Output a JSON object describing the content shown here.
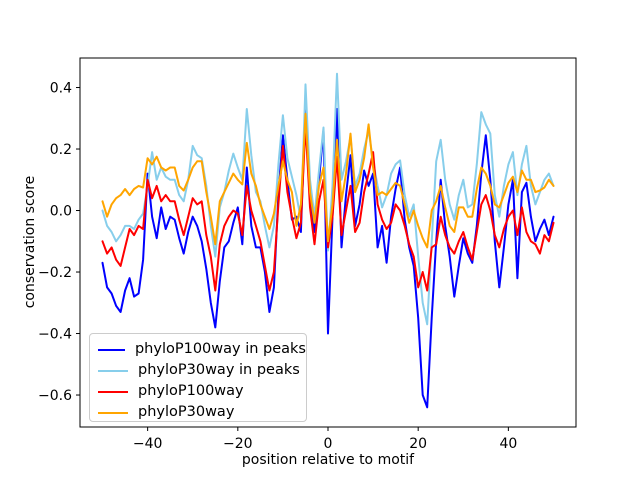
{
  "figure": {
    "background": "#ffffff"
  },
  "chart_data": {
    "type": "line",
    "title": "",
    "xlabel": "position relative to motif",
    "ylabel": "conservation score",
    "xlim": [
      -55,
      55
    ],
    "ylim": [
      -0.704,
      0.496
    ],
    "grid": false,
    "legend_position": "lower left",
    "xticks": {
      "values": [
        -40,
        -20,
        0,
        20,
        40
      ],
      "labels": [
        "−40",
        "−20",
        "0",
        "20",
        "40"
      ]
    },
    "yticks": {
      "values": [
        0.4,
        0.2,
        0.0,
        -0.2,
        -0.4,
        -0.6
      ],
      "labels": [
        "0.4",
        "0.2",
        "0.0",
        "−0.2",
        "−0.4",
        "−0.6"
      ]
    },
    "x": [
      -50,
      -49,
      -48,
      -47,
      -46,
      -45,
      -44,
      -43,
      -42,
      -41,
      -40,
      -39,
      -38,
      -37,
      -36,
      -35,
      -34,
      -33,
      -32,
      -31,
      -30,
      -29,
      -28,
      -27,
      -26,
      -25,
      -24,
      -23,
      -22,
      -21,
      -20,
      -19,
      -18,
      -17,
      -16,
      -15,
      -14,
      -13,
      -12,
      -11,
      -10,
      -9,
      -8,
      -7,
      -6,
      -5,
      -4,
      -3,
      -2,
      -1,
      0,
      1,
      2,
      3,
      4,
      5,
      6,
      7,
      8,
      9,
      10,
      11,
      12,
      13,
      14,
      15,
      16,
      17,
      18,
      19,
      20,
      21,
      22,
      23,
      24,
      25,
      26,
      27,
      28,
      29,
      30,
      31,
      32,
      33,
      34,
      35,
      36,
      37,
      38,
      39,
      40,
      41,
      42,
      43,
      44,
      45,
      46,
      47,
      48,
      49,
      50
    ],
    "series": [
      {
        "id": "phyloP100way-in-peaks",
        "name": "phyloP100way in peaks",
        "color": "#0000ff",
        "values": [
          -0.17,
          -0.25,
          -0.27,
          -0.31,
          -0.33,
          -0.26,
          -0.22,
          -0.28,
          -0.27,
          -0.16,
          0.12,
          -0.02,
          -0.09,
          0.01,
          -0.06,
          -0.02,
          -0.03,
          -0.09,
          -0.14,
          -0.07,
          -0.02,
          -0.05,
          -0.1,
          -0.19,
          -0.3,
          -0.38,
          -0.23,
          -0.12,
          -0.1,
          -0.04,
          0.01,
          -0.11,
          0.14,
          -0.05,
          -0.12,
          -0.12,
          -0.2,
          -0.33,
          -0.25,
          0.05,
          0.245,
          0.1,
          -0.03,
          -0.02,
          -0.07,
          0.34,
          0.05,
          -0.07,
          0.1,
          0.26,
          -0.4,
          -0.02,
          0.33,
          -0.12,
          0.05,
          0.18,
          -0.05,
          0.02,
          0.13,
          0.08,
          0.12,
          -0.12,
          -0.05,
          -0.17,
          -0.02,
          0.07,
          0.14,
          -0.03,
          -0.12,
          -0.18,
          -0.35,
          -0.6,
          -0.64,
          -0.35,
          -0.1,
          0.1,
          -0.05,
          -0.15,
          -0.28,
          -0.18,
          -0.09,
          -0.14,
          -0.17,
          -0.05,
          0.12,
          0.245,
          0.1,
          -0.1,
          -0.25,
          -0.12,
          0.02,
          0.1,
          -0.22,
          0.06,
          0.09,
          -0.02,
          -0.1,
          -0.06,
          -0.03,
          -0.08,
          -0.02
        ]
      },
      {
        "id": "phyloP30way-in-peaks",
        "name": "phyloP30way in peaks",
        "color": "#87ceeb",
        "values": [
          0.0,
          -0.05,
          -0.07,
          -0.1,
          -0.08,
          -0.05,
          -0.05,
          -0.06,
          -0.03,
          -0.01,
          0.08,
          0.19,
          0.1,
          0.14,
          0.11,
          0.1,
          0.1,
          0.05,
          0.03,
          0.1,
          0.21,
          0.18,
          0.17,
          0.08,
          -0.05,
          -0.15,
          0.01,
          0.06,
          0.13,
          0.185,
          0.14,
          0.1,
          0.33,
          0.18,
          0.06,
          0.03,
          -0.05,
          -0.12,
          -0.05,
          0.15,
          0.31,
          0.17,
          0.11,
          0.05,
          -0.03,
          0.41,
          0.1,
          -0.02,
          0.13,
          0.27,
          -0.13,
          0.08,
          0.445,
          0.1,
          0.16,
          0.24,
          0.08,
          0.12,
          0.2,
          0.26,
          0.16,
          0.08,
          0.01,
          0.05,
          0.12,
          0.15,
          0.163,
          0.05,
          -0.02,
          0.02,
          -0.15,
          -0.3,
          -0.37,
          -0.1,
          0.16,
          0.23,
          0.1,
          0.02,
          -0.03,
          0.05,
          0.1,
          0.01,
          0.02,
          0.15,
          0.32,
          0.28,
          0.25,
          0.05,
          -0.02,
          0.08,
          0.15,
          0.19,
          0.05,
          0.15,
          0.21,
          0.08,
          0.02,
          0.06,
          0.1,
          0.12,
          0.08
        ]
      },
      {
        "id": "phyloP100way",
        "name": "phyloP100way",
        "color": "#ff0000",
        "values": [
          -0.1,
          -0.14,
          -0.12,
          -0.16,
          -0.18,
          -0.12,
          -0.06,
          -0.08,
          -0.05,
          -0.06,
          0.1,
          0.04,
          0.08,
          0.03,
          0.05,
          0.03,
          0.03,
          -0.03,
          -0.08,
          -0.02,
          0.04,
          0.02,
          0.03,
          -0.08,
          -0.15,
          -0.26,
          -0.11,
          -0.05,
          -0.02,
          0.0,
          -0.01,
          -0.08,
          0.08,
          0.0,
          -0.05,
          -0.1,
          -0.18,
          -0.26,
          -0.2,
          0.02,
          0.21,
          0.06,
          -0.02,
          -0.09,
          -0.04,
          0.28,
          0.01,
          -0.11,
          0.03,
          0.1,
          -0.12,
          -0.02,
          0.175,
          -0.08,
          0.0,
          0.08,
          -0.07,
          -0.04,
          0.06,
          0.12,
          0.19,
          0.02,
          -0.03,
          -0.06,
          -0.04,
          0.02,
          0.0,
          -0.05,
          -0.11,
          -0.15,
          -0.25,
          -0.2,
          -0.26,
          -0.12,
          -0.11,
          -0.02,
          -0.08,
          -0.12,
          -0.14,
          -0.1,
          -0.07,
          -0.12,
          -0.16,
          -0.07,
          0.02,
          0.05,
          0.0,
          -0.08,
          -0.12,
          -0.06,
          -0.02,
          0.0,
          -0.08,
          0.01,
          -0.07,
          -0.1,
          -0.11,
          -0.14,
          -0.08,
          -0.1,
          -0.04
        ]
      },
      {
        "id": "phyloP30way",
        "name": "phyloP30way",
        "color": "#ffa500",
        "values": [
          0.03,
          -0.02,
          0.02,
          0.04,
          0.05,
          0.07,
          0.05,
          0.07,
          0.08,
          0.075,
          0.17,
          0.15,
          0.175,
          0.14,
          0.13,
          0.14,
          0.14,
          0.08,
          0.065,
          0.1,
          0.14,
          0.16,
          0.16,
          0.06,
          -0.02,
          -0.11,
          0.03,
          0.06,
          0.09,
          0.12,
          0.1,
          0.085,
          0.22,
          0.12,
          0.08,
          0.02,
          -0.02,
          -0.06,
          -0.01,
          0.08,
          0.16,
          0.1,
          0.06,
          -0.05,
          0.02,
          0.315,
          0.06,
          -0.04,
          0.08,
          0.14,
          -0.1,
          0.02,
          0.23,
          0.03,
          0.12,
          0.25,
          0.06,
          0.1,
          0.17,
          0.28,
          0.14,
          0.05,
          0.06,
          0.05,
          0.07,
          0.09,
          0.08,
          0.02,
          -0.04,
          0.0,
          -0.05,
          -0.09,
          -0.12,
          0.0,
          0.03,
          0.08,
          0.01,
          -0.05,
          -0.07,
          0.01,
          0.01,
          -0.02,
          -0.02,
          0.07,
          0.14,
          0.12,
          0.08,
          0.02,
          0.01,
          0.05,
          0.09,
          0.11,
          0.06,
          0.13,
          0.1,
          0.1,
          0.06,
          0.065,
          0.075,
          0.1,
          0.08
        ]
      }
    ]
  }
}
